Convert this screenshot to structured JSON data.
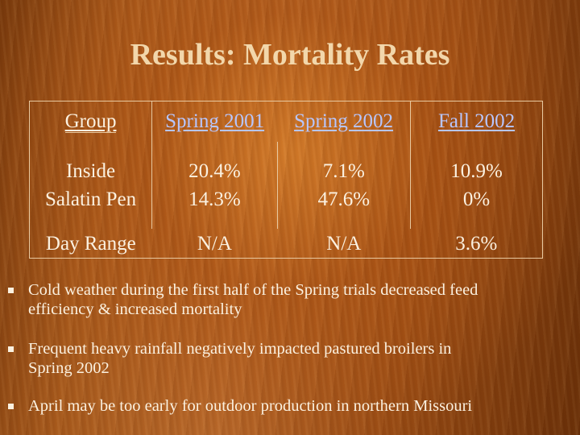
{
  "slide": {
    "title": "Results: Mortality Rates"
  },
  "table": {
    "headers": {
      "group": "Group",
      "spring_2001": "Spring 2001",
      "spring_2002": "Spring 2002",
      "fall_2002": "Fall 2002"
    },
    "rows": [
      {
        "label_lines": [
          "Inside",
          "Salatin Pen"
        ],
        "spring_2001": [
          "20.4%",
          "14.3%"
        ],
        "spring_2002": [
          "7.1%",
          "47.6%"
        ],
        "fall_2002": [
          "10.9%",
          "0%"
        ]
      },
      {
        "label_lines": [
          "Day Range"
        ],
        "spring_2001": [
          "N/A"
        ],
        "spring_2002": [
          "N/A"
        ],
        "fall_2002": [
          "3.6%"
        ]
      }
    ]
  },
  "bullets": [
    {
      "lines": [
        "Cold weather during the first half of the Spring trials decreased feed",
        "efficiency & increased mortality"
      ]
    },
    {
      "lines": [
        "Frequent heavy rainfall negatively impacted pastured broilers in",
        "Spring 2002"
      ]
    },
    {
      "lines": [
        "April may be too early for outdoor production in northern Missouri"
      ]
    }
  ],
  "colors": {
    "title": "#f2d7ab",
    "text": "#fbf1e0",
    "link": "#b7c6ff",
    "border": "#e8c9a0"
  }
}
